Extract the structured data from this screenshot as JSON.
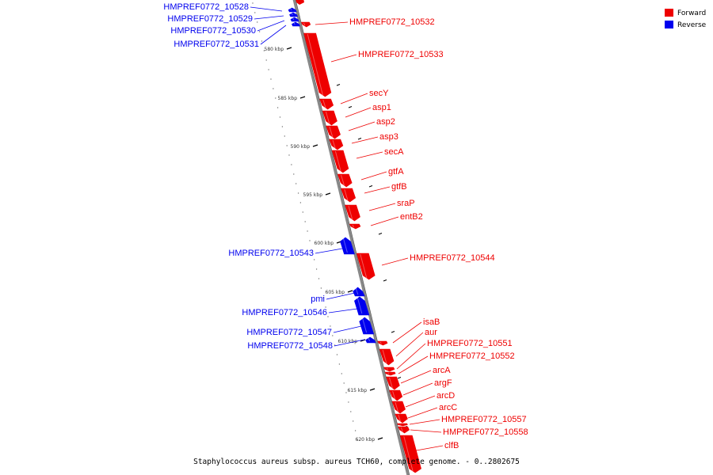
{
  "legend": [
    {
      "label": "Forward",
      "color": "#ee0000"
    },
    {
      "label": "Reverse",
      "color": "#0000ee"
    }
  ],
  "caption": "Staphylococcus aureus subsp. aureus TCH60, complete genome. - 0..2802675",
  "colors": {
    "forward": "#ee0000",
    "reverse": "#0000ee",
    "backbone": "#888888"
  },
  "scale": {
    "unit": "kbp",
    "ticks": [
      580,
      585,
      590,
      595,
      600,
      605,
      610,
      615,
      620
    ]
  },
  "genes": [
    {
      "name": "HMPREF0772_10528",
      "strand": "reverse"
    },
    {
      "name": "HMPREF0772_10529",
      "strand": "reverse"
    },
    {
      "name": "HMPREF0772_10530",
      "strand": "reverse"
    },
    {
      "name": "HMPREF0772_10531",
      "strand": "reverse"
    },
    {
      "name": "HMPREF0772_10532",
      "strand": "forward"
    },
    {
      "name": "HMPREF0772_10533",
      "strand": "forward"
    },
    {
      "name": "secY",
      "strand": "forward"
    },
    {
      "name": "asp1",
      "strand": "forward"
    },
    {
      "name": "asp2",
      "strand": "forward"
    },
    {
      "name": "asp3",
      "strand": "forward"
    },
    {
      "name": "secA",
      "strand": "forward"
    },
    {
      "name": "gtfA",
      "strand": "forward"
    },
    {
      "name": "gtfB",
      "strand": "forward"
    },
    {
      "name": "sraP",
      "strand": "forward"
    },
    {
      "name": "entB2",
      "strand": "forward"
    },
    {
      "name": "HMPREF0772_10543",
      "strand": "reverse"
    },
    {
      "name": "HMPREF0772_10544",
      "strand": "forward"
    },
    {
      "name": "pmi",
      "strand": "reverse"
    },
    {
      "name": "HMPREF0772_10546",
      "strand": "reverse"
    },
    {
      "name": "HMPREF0772_10547",
      "strand": "reverse"
    },
    {
      "name": "HMPREF0772_10548",
      "strand": "reverse"
    },
    {
      "name": "isaB",
      "strand": "forward"
    },
    {
      "name": "aur",
      "strand": "forward"
    },
    {
      "name": "HMPREF0772_10551",
      "strand": "forward"
    },
    {
      "name": "HMPREF0772_10552",
      "strand": "forward"
    },
    {
      "name": "arcA",
      "strand": "forward"
    },
    {
      "name": "argF",
      "strand": "forward"
    },
    {
      "name": "arcD",
      "strand": "forward"
    },
    {
      "name": "arcC",
      "strand": "forward"
    },
    {
      "name": "HMPREF0772_10557",
      "strand": "forward"
    },
    {
      "name": "HMPREF0772_10558",
      "strand": "forward"
    },
    {
      "name": "clfB",
      "strand": "forward"
    }
  ]
}
